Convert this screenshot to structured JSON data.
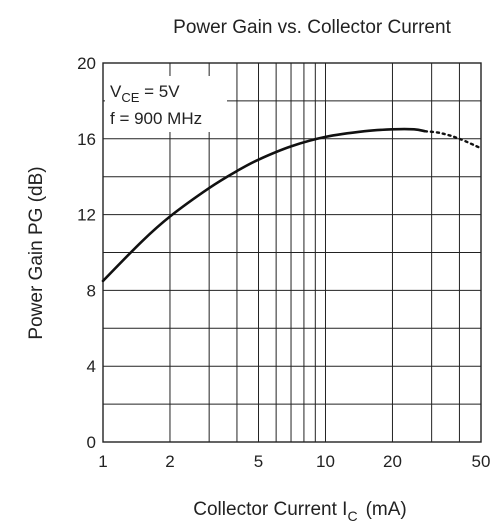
{
  "chart_data": {
    "type": "line",
    "title": "Power Gain vs. Collector Current",
    "xlabel": {
      "text": "Collector Current  I",
      "subscript": "C",
      "unit": "(mA)"
    },
    "ylabel": "Power Gain  PG  (dB)",
    "x_scale": "log",
    "xlim": [
      1,
      50
    ],
    "ylim": [
      0,
      20
    ],
    "x_ticks": [
      1,
      2,
      5,
      10,
      20,
      50
    ],
    "y_ticks": [
      0,
      4,
      8,
      12,
      16,
      20
    ],
    "grid": true,
    "annotations": [
      {
        "prefix": "V",
        "subscript": "CE",
        "suffix": " = 5V"
      },
      {
        "text": "f = 900 MHz"
      }
    ],
    "series": [
      {
        "style": "solid",
        "x": [
          1,
          1.5,
          2,
          3,
          4,
          5,
          7,
          10,
          15,
          20,
          25,
          28
        ],
        "y": [
          8.5,
          10.6,
          11.9,
          13.4,
          14.3,
          14.9,
          15.6,
          16.1,
          16.4,
          16.5,
          16.5,
          16.4
        ]
      },
      {
        "style": "dotted",
        "x": [
          28,
          33,
          40,
          50
        ],
        "y": [
          16.4,
          16.3,
          16.0,
          15.5
        ]
      }
    ]
  }
}
